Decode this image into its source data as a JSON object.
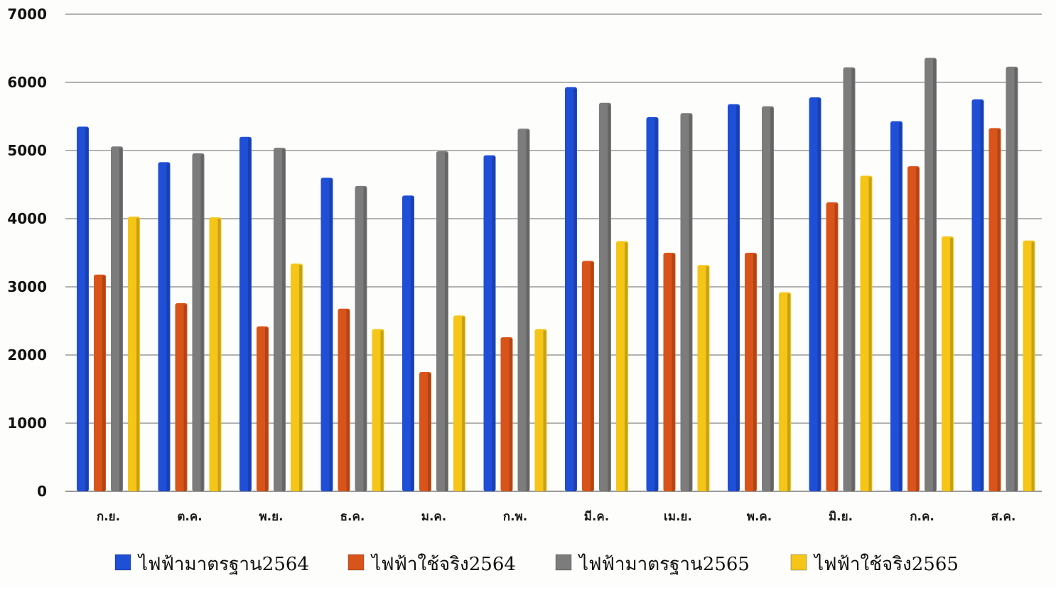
{
  "chart_data": {
    "type": "bar",
    "title": "",
    "xlabel": "",
    "ylabel": "",
    "ylim": [
      0,
      7000
    ],
    "yticks": [
      0,
      1000,
      2000,
      3000,
      4000,
      5000,
      6000,
      7000
    ],
    "grid": true,
    "legend_position": "bottom",
    "categories": [
      "ก.ย.",
      "ต.ค.",
      "พ.ย.",
      "ธ.ค.",
      "ม.ค.",
      "ก.พ.",
      "มี.ค.",
      "เม.ย.",
      "พ.ค.",
      "มิ.ย.",
      "ก.ค.",
      "ส.ค."
    ],
    "series": [
      {
        "name": "ไฟฟ้ามาตรฐาน2564",
        "color": "#1f4fd6",
        "values": [
          5350,
          4830,
          5200,
          4600,
          4340,
          4930,
          5930,
          5490,
          5680,
          5780,
          5430,
          5750
        ]
      },
      {
        "name": "ไฟฟ้าใช้จริง2564",
        "color": "#d9541a",
        "values": [
          3180,
          2760,
          2420,
          2680,
          1750,
          2260,
          3380,
          3500,
          3500,
          4240,
          4770,
          5330
        ]
      },
      {
        "name": "ไฟฟ้ามาตรฐาน2565",
        "color": "#7c7c7c",
        "values": [
          5060,
          4960,
          5040,
          4480,
          4990,
          5320,
          5700,
          5550,
          5650,
          6220,
          6360,
          6230
        ]
      },
      {
        "name": "ไฟฟ้าใช้จริง2565",
        "color": "#f5c518",
        "values": [
          4030,
          4020,
          3340,
          2380,
          2580,
          2380,
          3670,
          3320,
          2920,
          4630,
          3740,
          3680
        ]
      }
    ]
  }
}
